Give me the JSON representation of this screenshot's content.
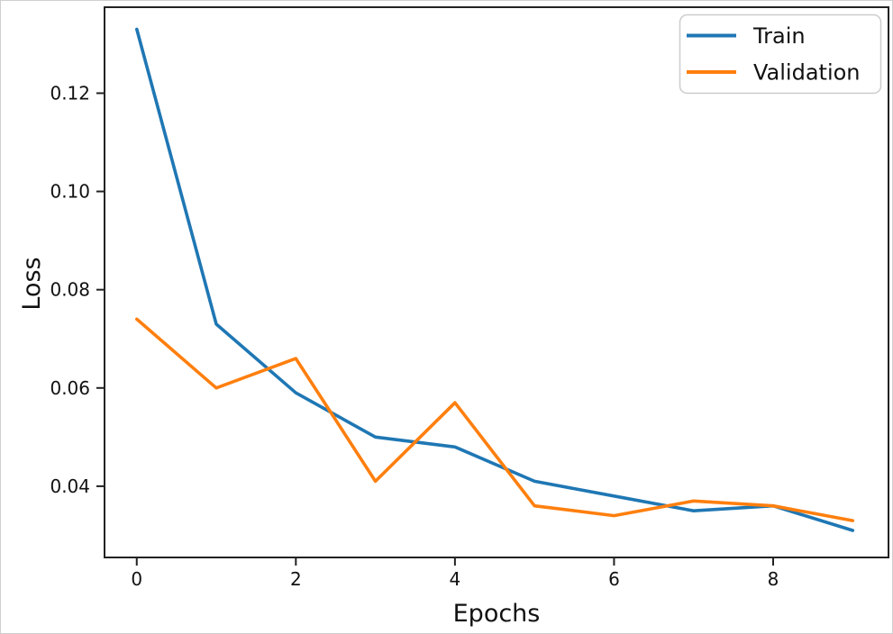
{
  "chart_data": {
    "type": "line",
    "title": "",
    "xlabel": "Epochs",
    "ylabel": "Loss",
    "x": [
      0,
      1,
      2,
      3,
      4,
      5,
      6,
      7,
      8,
      9
    ],
    "series": [
      {
        "name": "Train",
        "color": "#1f77b4",
        "values": [
          0.133,
          0.073,
          0.059,
          0.05,
          0.048,
          0.041,
          0.038,
          0.035,
          0.036,
          0.031
        ]
      },
      {
        "name": "Validation",
        "color": "#ff7f0e",
        "values": [
          0.074,
          0.06,
          0.066,
          0.041,
          0.057,
          0.036,
          0.034,
          0.037,
          0.036,
          0.033
        ]
      }
    ],
    "xlim": [
      -0.405,
      9.45
    ],
    "ylim": [
      0.0255,
      0.1375
    ],
    "xticks": [
      0,
      2,
      4,
      6,
      8
    ],
    "xtick_labels": [
      "0",
      "2",
      "4",
      "6",
      "8"
    ],
    "yticks": [
      0.04,
      0.06,
      0.08,
      0.1,
      0.12
    ],
    "ytick_labels": [
      "0.04",
      "0.06",
      "0.08",
      "0.10",
      "0.12"
    ],
    "grid": false,
    "legend_position": "upper right",
    "spine_color": "#222222"
  },
  "legend": {
    "items": [
      {
        "label": "Train",
        "color": "#1f77b4"
      },
      {
        "label": "Validation",
        "color": "#ff7f0e"
      }
    ]
  }
}
